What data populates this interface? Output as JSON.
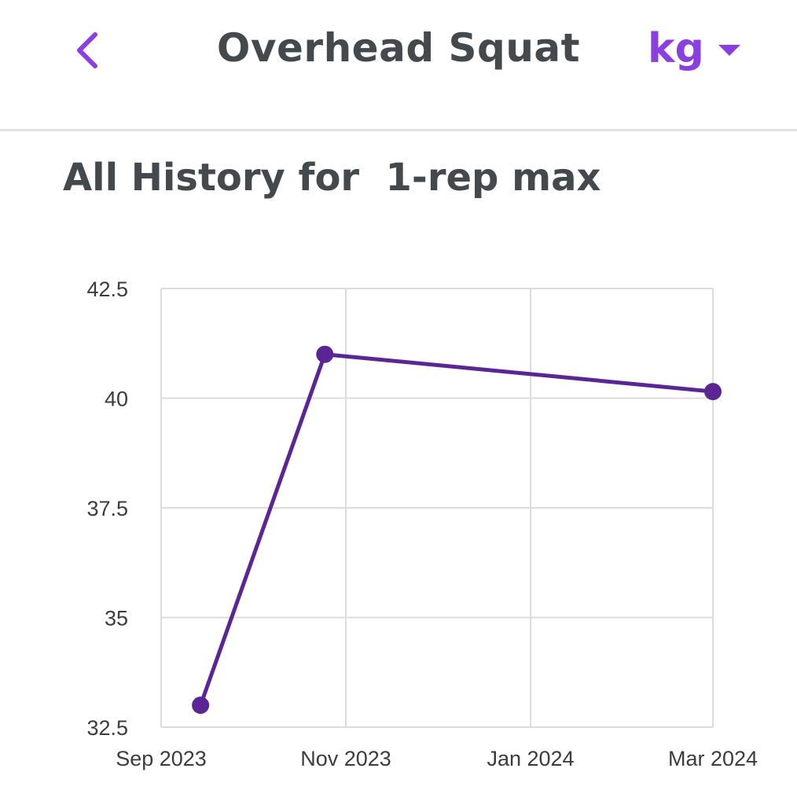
{
  "header": {
    "title": "Overhead Squat",
    "unit": "kg",
    "back_icon": "chevron-left-icon",
    "dropdown_icon": "caret-down-icon",
    "accent_color": "#8a3fe0"
  },
  "section": {
    "title": "All History for  1-rep max"
  },
  "chart_data": {
    "type": "line",
    "title": "",
    "xlabel": "",
    "ylabel": "",
    "line_color": "#5b2596",
    "grid": true,
    "x_tick_labels": [
      "Sep 2023",
      "Nov 2023",
      "Jan 2024",
      "Mar 2024"
    ],
    "y_tick_labels": [
      "42.5",
      "40",
      "37.5",
      "35",
      "32.5"
    ],
    "ylim": [
      32.5,
      42.5
    ],
    "series": [
      {
        "points": [
          {
            "x": "2023-09-14",
            "y": 33
          },
          {
            "x": "2023-10-25",
            "y": 41
          },
          {
            "x": "2024-03-01",
            "y": 40.15
          }
        ]
      }
    ]
  }
}
